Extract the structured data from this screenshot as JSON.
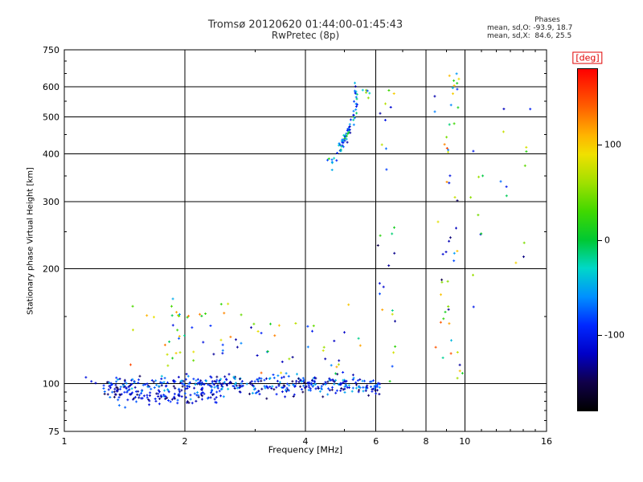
{
  "stats": {
    "title": "Phases",
    "line_o": "mean, sd,O: -93.9, 18.7",
    "line_x": "mean, sd,X:  84.6, 25.5"
  },
  "colorbar": {
    "title": "[deg]",
    "title_color": "#e00000",
    "vmin": -180,
    "vmax": 180,
    "ticks": [
      {
        "v": 100,
        "label": "100"
      },
      {
        "v": 0,
        "label": "0"
      },
      {
        "v": -100,
        "label": "-100"
      }
    ],
    "stops": [
      {
        "v": -180,
        "c": "#000000"
      },
      {
        "v": -150,
        "c": "#10004a"
      },
      {
        "v": -120,
        "c": "#0000c8"
      },
      {
        "v": -90,
        "c": "#0028ff"
      },
      {
        "v": -60,
        "c": "#0090ff"
      },
      {
        "v": -30,
        "c": "#00d8c8"
      },
      {
        "v": 0,
        "c": "#00c832"
      },
      {
        "v": 30,
        "c": "#40d800"
      },
      {
        "v": 60,
        "c": "#a0e000"
      },
      {
        "v": 90,
        "c": "#f0e000"
      },
      {
        "v": 110,
        "c": "#ffb400"
      },
      {
        "v": 140,
        "c": "#ff6000"
      },
      {
        "v": 180,
        "c": "#ff0000"
      }
    ]
  },
  "chart_data": {
    "type": "scatter",
    "title": "Tromsø 20120620 01:44:00-01:45:43",
    "subtitle": "RwPretec (8p)",
    "xlabel": "Frequency [MHz]",
    "ylabel": "Stationary phase Virtual Height [km]",
    "xscale": "log",
    "yscale": "log",
    "xlim": [
      1,
      16
    ],
    "ylim": [
      75,
      750
    ],
    "x_ticks": [
      {
        "v": 1,
        "label": "1"
      },
      {
        "v": 2,
        "label": "2"
      },
      {
        "v": 4,
        "label": "4"
      },
      {
        "v": 6,
        "label": "6"
      },
      {
        "v": 8,
        "label": "8"
      },
      {
        "v": 10,
        "label": "10"
      },
      {
        "v": 16,
        "label": "16"
      }
    ],
    "x_minor_ticks": [
      3,
      5,
      7,
      9,
      11,
      12,
      13,
      14,
      15
    ],
    "y_ticks": [
      {
        "v": 75,
        "label": "75"
      },
      {
        "v": 100,
        "label": "100"
      },
      {
        "v": 200,
        "label": "200"
      },
      {
        "v": 300,
        "label": "300"
      },
      {
        "v": 400,
        "label": "400"
      },
      {
        "v": 500,
        "label": "500"
      },
      {
        "v": 600,
        "label": "600"
      },
      {
        "v": 750,
        "label": "750"
      }
    ],
    "y_minor_ticks": [
      80,
      85,
      90,
      95,
      150,
      250,
      350,
      450,
      550,
      650,
      700
    ],
    "x_gridlines": [
      2,
      4,
      6,
      8,
      10
    ],
    "y_gridlines": [
      100,
      200,
      300,
      400,
      500,
      600
    ],
    "color_variable": "phase [deg]",
    "clusters": [
      {
        "name": "e-region-band",
        "type": "blob",
        "count": 430,
        "f_range": [
          1.25,
          6.15
        ],
        "h_range": [
          90,
          108
        ],
        "h_dist": "gauss",
        "phase_range": [
          -150,
          -40
        ]
      },
      {
        "name": "e-region-low-tail",
        "type": "blob",
        "count": 90,
        "f_range": [
          1.3,
          2.4
        ],
        "h_range": [
          86,
          98
        ],
        "h_dist": "gauss",
        "phase_range": [
          -150,
          -70
        ]
      },
      {
        "name": "e-scatter-blue",
        "type": "blob",
        "count": 28,
        "f_range": [
          2.0,
          5.2
        ],
        "h_range": [
          103,
          142
        ],
        "h_dist": "uniform",
        "phase_range": [
          -140,
          -60
        ]
      },
      {
        "name": "e-scatter-warm",
        "type": "blob",
        "count": 42,
        "f_range": [
          1.45,
          5.6
        ],
        "h_range": [
          104,
          162
        ],
        "h_dist": "uniform",
        "phase_range": [
          -20,
          150
        ]
      },
      {
        "name": "mini-trace-2mhz",
        "type": "blob",
        "count": 14,
        "f_range": [
          1.8,
          2.02
        ],
        "h_range": [
          116,
          168
        ],
        "h_dist": "uniform",
        "phase_range": [
          -130,
          140
        ]
      },
      {
        "name": "f-region-trace",
        "type": "trace",
        "count": 72,
        "path": [
          [
            4.55,
            378
          ],
          [
            4.72,
            395
          ],
          [
            4.9,
            415
          ],
          [
            5.05,
            440
          ],
          [
            5.2,
            470
          ],
          [
            5.3,
            515
          ],
          [
            5.38,
            560
          ],
          [
            5.34,
            608
          ]
        ],
        "f_jitter": 0.05,
        "h_jitter": 9,
        "phase_range": [
          -130,
          20
        ]
      },
      {
        "name": "f-trace-right",
        "type": "blob",
        "count": 6,
        "f_range": [
          5.5,
          5.8
        ],
        "h_range": [
          550,
          595
        ],
        "h_dist": "uniform",
        "phase_range": [
          -110,
          60
        ]
      },
      {
        "name": "column-6p5",
        "type": "blob",
        "count": 26,
        "f_range": [
          6.05,
          6.7
        ],
        "h_range": [
          100,
          600
        ],
        "h_dist": "logu",
        "phase_range": [
          -150,
          150
        ]
      },
      {
        "name": "column-9",
        "type": "blob",
        "count": 44,
        "f_range": [
          8.4,
          9.9
        ],
        "h_range": [
          100,
          640
        ],
        "h_dist": "logu",
        "phase_range": [
          -150,
          150
        ]
      },
      {
        "name": "column-9-top",
        "type": "blob",
        "count": 9,
        "f_range": [
          9.15,
          9.7
        ],
        "h_range": [
          575,
          650
        ],
        "h_dist": "uniform",
        "phase_range": [
          -120,
          120
        ]
      },
      {
        "name": "column-10p5",
        "type": "blob",
        "count": 9,
        "f_range": [
          10.3,
          11.2
        ],
        "h_range": [
          140,
          470
        ],
        "h_dist": "logu",
        "phase_range": [
          -150,
          150
        ]
      },
      {
        "name": "far-right",
        "type": "blob",
        "count": 12,
        "f_range": [
          11.8,
          14.6
        ],
        "h_range": [
          190,
          580
        ],
        "h_dist": "logu",
        "phase_range": [
          -150,
          120
        ]
      },
      {
        "name": "left-edge",
        "type": "blob",
        "count": 3,
        "f_range": [
          1.12,
          1.22
        ],
        "h_range": [
          96,
          104
        ],
        "h_dist": "uniform",
        "phase_range": [
          -120,
          -85
        ]
      }
    ]
  }
}
